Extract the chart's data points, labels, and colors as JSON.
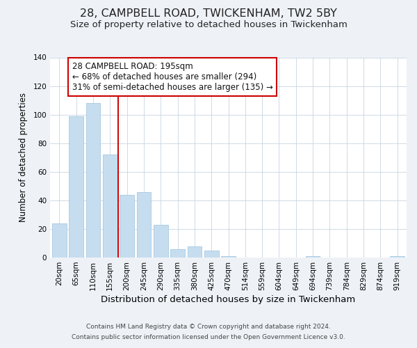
{
  "title": "28, CAMPBELL ROAD, TWICKENHAM, TW2 5BY",
  "subtitle": "Size of property relative to detached houses in Twickenham",
  "xlabel": "Distribution of detached houses by size in Twickenham",
  "ylabel": "Number of detached properties",
  "bar_labels": [
    "20sqm",
    "65sqm",
    "110sqm",
    "155sqm",
    "200sqm",
    "245sqm",
    "290sqm",
    "335sqm",
    "380sqm",
    "425sqm",
    "470sqm",
    "514sqm",
    "559sqm",
    "604sqm",
    "649sqm",
    "694sqm",
    "739sqm",
    "784sqm",
    "829sqm",
    "874sqm",
    "919sqm"
  ],
  "bar_values": [
    24,
    99,
    108,
    72,
    44,
    46,
    23,
    6,
    8,
    5,
    1,
    0,
    0,
    0,
    0,
    1,
    0,
    0,
    0,
    0,
    1
  ],
  "bar_color": "#c5ddef",
  "bar_edge_color": "#a8c8e0",
  "vline_x": 3.5,
  "vline_color": "#cc0000",
  "annotation_box_text": "28 CAMPBELL ROAD: 195sqm\n← 68% of detached houses are smaller (294)\n31% of semi-detached houses are larger (135) →",
  "annotation_box_edge_color": "#cc0000",
  "annotation_box_facecolor": "#ffffff",
  "ylim": [
    0,
    140
  ],
  "yticks": [
    0,
    20,
    40,
    60,
    80,
    100,
    120,
    140
  ],
  "bg_color": "#eef2f7",
  "plot_bg_color": "#ffffff",
  "grid_color": "#c8d4e0",
  "footer_line1": "Contains HM Land Registry data © Crown copyright and database right 2024.",
  "footer_line2": "Contains public sector information licensed under the Open Government Licence v3.0.",
  "title_fontsize": 11.5,
  "subtitle_fontsize": 9.5,
  "xlabel_fontsize": 9.5,
  "ylabel_fontsize": 8.5,
  "tick_fontsize": 7.5,
  "annotation_fontsize": 8.5,
  "footer_fontsize": 6.5
}
